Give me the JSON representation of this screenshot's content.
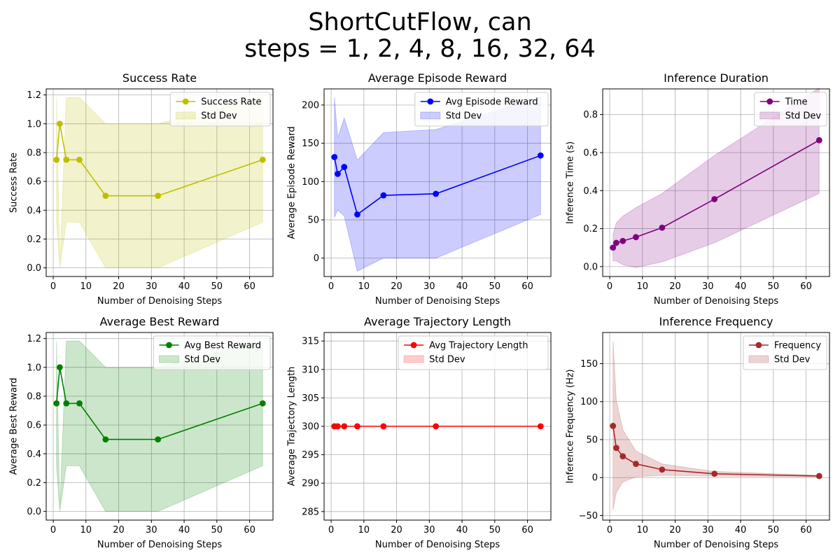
{
  "figure": {
    "title_line1": "ShortCutFlow, can",
    "title_line2": "steps = 1, 2, 4, 8, 16, 32, 64"
  },
  "chart_data": [
    {
      "id": "success-rate",
      "type": "line",
      "title": "Success Rate",
      "xlabel": "Number of Denoising Steps",
      "ylabel": "Success Rate",
      "color": "#bfbf00",
      "x": [
        1,
        2,
        4,
        8,
        16,
        32,
        64
      ],
      "series": [
        {
          "name": "Success Rate",
          "values": [
            0.75,
            1.0,
            0.75,
            0.75,
            0.5,
            0.5,
            0.75
          ]
        }
      ],
      "std_upper": [
        1.183,
        0.0,
        1.183,
        1.183,
        1.0,
        1.0,
        1.183
      ],
      "std_lower": [
        0.317,
        0.0,
        0.317,
        0.317,
        0.0,
        0.0,
        0.317
      ],
      "std_label": "Std Dev",
      "xlim": [
        -2.15,
        67.15
      ],
      "ylim": [
        -0.06,
        1.242
      ],
      "xticks": [
        0,
        10,
        20,
        30,
        40,
        50,
        60
      ],
      "yticks": [
        0.0,
        0.2,
        0.4,
        0.6,
        0.8,
        1.0,
        1.2
      ],
      "ytick_labels": [
        "0.0",
        "0.2",
        "0.4",
        "0.6",
        "0.8",
        "1.0",
        "1.2"
      ],
      "grid": true,
      "legend": "upper right"
    },
    {
      "id": "avg-episode-reward",
      "type": "line",
      "title": "Average Episode Reward",
      "xlabel": "Number of Denoising Steps",
      "ylabel": "Average Episode Reward",
      "color": "#0000ff",
      "x": [
        1,
        2,
        4,
        8,
        16,
        32,
        64
      ],
      "series": [
        {
          "name": "Avg Episode Reward",
          "values": [
            132,
            110,
            119,
            57,
            82,
            84,
            134
          ]
        }
      ],
      "std_upper": [
        210,
        157,
        183,
        128,
        164,
        168,
        210
      ],
      "std_lower": [
        53,
        63,
        55,
        -17,
        0,
        0,
        57
      ],
      "std_label": "Std Dev",
      "xlim": [
        -2.15,
        67.15
      ],
      "ylim": [
        -24,
        221
      ],
      "xticks": [
        0,
        10,
        20,
        30,
        40,
        50,
        60
      ],
      "yticks": [
        0,
        50,
        100,
        150,
        200
      ],
      "ytick_labels": [
        "0",
        "50",
        "100",
        "150",
        "200"
      ],
      "grid": true,
      "legend": "upper right"
    },
    {
      "id": "inference-duration",
      "type": "line",
      "title": "Inference Duration",
      "xlabel": "Number of Denoising Steps",
      "ylabel": "Inference Time (s)",
      "color": "#800080",
      "x": [
        1,
        2,
        4,
        8,
        16,
        32,
        64
      ],
      "series": [
        {
          "name": "Time",
          "values": [
            0.1,
            0.125,
            0.135,
            0.155,
            0.205,
            0.355,
            0.665
          ]
        }
      ],
      "std_upper": [
        0.17,
        0.23,
        0.265,
        0.31,
        0.385,
        0.585,
        0.94
      ],
      "std_lower": [
        0.03,
        0.03,
        0.01,
        -0.005,
        0.025,
        0.125,
        0.385
      ],
      "std_label": "Std Dev",
      "xlim": [
        -2.15,
        67.15
      ],
      "ylim": [
        -0.052,
        0.935
      ],
      "xticks": [
        0,
        10,
        20,
        30,
        40,
        50,
        60
      ],
      "yticks": [
        0.0,
        0.2,
        0.4,
        0.6,
        0.8
      ],
      "ytick_labels": [
        "0.0",
        "0.2",
        "0.4",
        "0.6",
        "0.8"
      ],
      "grid": true,
      "legend": "upper right"
    },
    {
      "id": "avg-best-reward",
      "type": "line",
      "title": "Average Best Reward",
      "xlabel": "Number of Denoising Steps",
      "ylabel": "Average Best Reward",
      "color": "#008000",
      "x": [
        1,
        2,
        4,
        8,
        16,
        32,
        64
      ],
      "series": [
        {
          "name": "Avg Best Reward",
          "values": [
            0.75,
            1.0,
            0.75,
            0.75,
            0.5,
            0.5,
            0.75
          ]
        }
      ],
      "std_upper": [
        1.183,
        0.0,
        1.183,
        1.183,
        1.0,
        1.0,
        1.183
      ],
      "std_lower": [
        0.317,
        0.0,
        0.317,
        0.317,
        0.0,
        0.0,
        0.317
      ],
      "std_label": "Std Dev",
      "xlim": [
        -2.15,
        67.15
      ],
      "ylim": [
        -0.06,
        1.242
      ],
      "xticks": [
        0,
        10,
        20,
        30,
        40,
        50,
        60
      ],
      "yticks": [
        0.0,
        0.2,
        0.4,
        0.6,
        0.8,
        1.0,
        1.2
      ],
      "ytick_labels": [
        "0.0",
        "0.2",
        "0.4",
        "0.6",
        "0.8",
        "1.0",
        "1.2"
      ],
      "grid": true,
      "legend": "upper right"
    },
    {
      "id": "avg-trajectory-length",
      "type": "line",
      "title": "Average Trajectory Length",
      "xlabel": "Number of Denoising Steps",
      "ylabel": "Average Trajectory Length",
      "color": "#ff0000",
      "x": [
        1,
        2,
        4,
        8,
        16,
        32,
        64
      ],
      "series": [
        {
          "name": "Avg Trajectory Length",
          "values": [
            300,
            300,
            300,
            300,
            300,
            300,
            300
          ]
        }
      ],
      "std_upper": [
        300,
        300,
        300,
        300,
        300,
        300,
        300
      ],
      "std_lower": [
        300,
        300,
        300,
        300,
        300,
        300,
        300
      ],
      "std_label": "Std Dev",
      "xlim": [
        -2.15,
        67.15
      ],
      "ylim": [
        283.5,
        316.5
      ],
      "xticks": [
        0,
        10,
        20,
        30,
        40,
        50,
        60
      ],
      "yticks": [
        285,
        290,
        295,
        300,
        305,
        310,
        315
      ],
      "ytick_labels": [
        "285",
        "290",
        "295",
        "300",
        "305",
        "310",
        "315"
      ],
      "grid": true,
      "legend": "upper right"
    },
    {
      "id": "inference-frequency",
      "type": "line",
      "title": "Inference Frequency",
      "xlabel": "Number of Denoising Steps",
      "ylabel": "Inference Frequency (Hz)",
      "color": "#a52a2a",
      "x": [
        1,
        2,
        4,
        8,
        16,
        32,
        64
      ],
      "series": [
        {
          "name": "Frequency",
          "values": [
            68,
            39,
            28,
            18,
            10.5,
            5,
            2
          ]
        }
      ],
      "std_upper": [
        180,
        102,
        63,
        35,
        18,
        8,
        3
      ],
      "std_lower": [
        -43,
        -20,
        -6,
        1,
        3,
        2,
        1
      ],
      "std_label": "Std Dev",
      "xlim": [
        -2.15,
        67.15
      ],
      "ylim": [
        -56,
        191
      ],
      "xticks": [
        0,
        10,
        20,
        30,
        40,
        50,
        60
      ],
      "yticks": [
        -50,
        0,
        50,
        100,
        150
      ],
      "ytick_labels": [
        "−50",
        "0",
        "50",
        "100",
        "150"
      ],
      "grid": true,
      "legend": "upper right"
    }
  ]
}
